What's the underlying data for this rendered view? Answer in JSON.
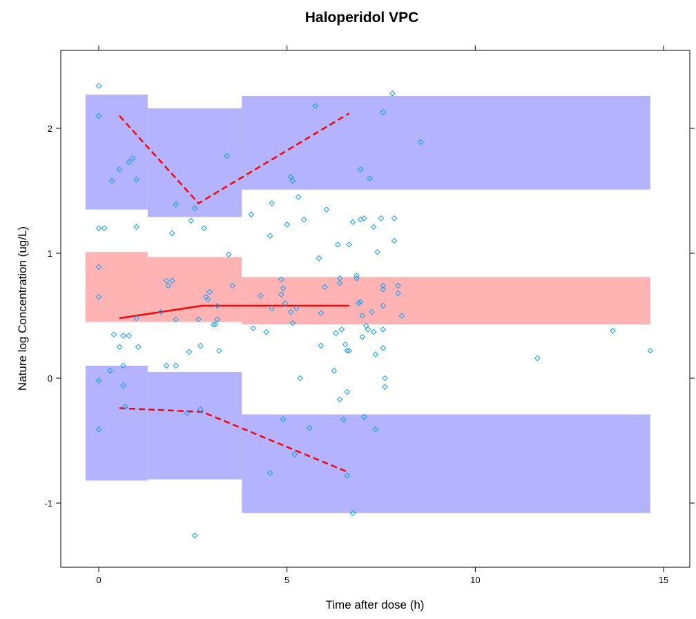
{
  "chart_data": {
    "type": "scatter",
    "title": "Haloperidol VPC",
    "xlabel": "Time after dose (h)",
    "ylabel": "Nature log Concentration (ug/L)",
    "xlim": [
      -1,
      15.2
    ],
    "ylim": [
      -1.5,
      2.6
    ],
    "xticks": [
      0,
      5,
      10,
      15
    ],
    "yticks": [
      -1,
      0,
      1,
      2
    ],
    "grid": false,
    "colors": {
      "outer_band": "#b3b3ff",
      "median_band": "#ffb3b3",
      "line": "#ff0000",
      "points": "#00a0ff"
    },
    "bands": [
      {
        "name": "upper",
        "color": "#b3b3ff",
        "segments": [
          {
            "x0": -0.35,
            "x1": 1.3,
            "y0": 1.35,
            "y1": 2.27
          },
          {
            "x0": 1.3,
            "x1": 3.8,
            "y0": 1.29,
            "y1": 2.16
          },
          {
            "x0": 3.8,
            "x1": 14.65,
            "y0": 1.51,
            "y1": 2.26
          }
        ]
      },
      {
        "name": "median",
        "color": "#ffb3b3",
        "segments": [
          {
            "x0": -0.35,
            "x1": 1.3,
            "y0": 0.45,
            "y1": 1.01
          },
          {
            "x0": 1.3,
            "x1": 3.8,
            "y0": 0.45,
            "y1": 0.97
          },
          {
            "x0": 3.8,
            "x1": 14.65,
            "y0": 0.43,
            "y1": 0.81
          }
        ]
      },
      {
        "name": "lower",
        "color": "#b3b3ff",
        "segments": [
          {
            "x0": -0.35,
            "x1": 1.3,
            "y0": -0.82,
            "y1": 0.1
          },
          {
            "x0": 1.3,
            "x1": 3.8,
            "y0": -0.81,
            "y1": 0.05
          },
          {
            "x0": 3.8,
            "x1": 14.65,
            "y0": -1.08,
            "y1": -0.29
          }
        ]
      }
    ],
    "lines": [
      {
        "style": "dashed",
        "x": [
          0.55,
          2.65,
          6.65
        ],
        "y": [
          2.1,
          1.4,
          2.12
        ]
      },
      {
        "style": "solid",
        "x": [
          0.55,
          2.75,
          6.65
        ],
        "y": [
          0.48,
          0.58,
          0.58
        ]
      },
      {
        "style": "dashed",
        "x": [
          0.55,
          2.75,
          6.6
        ],
        "y": [
          -0.24,
          -0.27,
          -0.75
        ]
      }
    ],
    "points": [
      [
        0,
        2.34
      ],
      [
        0,
        2.1
      ],
      [
        0,
        1.2
      ],
      [
        0.15,
        1.2
      ],
      [
        0,
        0.89
      ],
      [
        0,
        0.65
      ],
      [
        0,
        -0.02
      ],
      [
        0,
        -0.41
      ],
      [
        0.35,
        1.58
      ],
      [
        0.55,
        1.67
      ],
      [
        0.8,
        1.73
      ],
      [
        0.9,
        1.76
      ],
      [
        1,
        1.59
      ],
      [
        1,
        1.21
      ],
      [
        0.4,
        0.35
      ],
      [
        0.55,
        0.25
      ],
      [
        0.65,
        0.34
      ],
      [
        0.8,
        0.34
      ],
      [
        0.65,
        0.1
      ],
      [
        0.65,
        -0.06
      ],
      [
        0.7,
        -0.23
      ],
      [
        0.3,
        0.06
      ],
      [
        1.0,
        0.48
      ],
      [
        1.05,
        0.25
      ],
      [
        1.65,
        0.53
      ],
      [
        1.8,
        0.78
      ],
      [
        1.85,
        0.74
      ],
      [
        1.95,
        0.78
      ],
      [
        1.95,
        1.16
      ],
      [
        2.05,
        0.47
      ],
      [
        1.8,
        0.1
      ],
      [
        2.05,
        0.1
      ],
      [
        2.05,
        1.39
      ],
      [
        2.35,
        -0.28
      ],
      [
        2.4,
        0.21
      ],
      [
        2.55,
        1.36
      ],
      [
        2.65,
        0.47
      ],
      [
        2.7,
        0.26
      ],
      [
        2.7,
        -0.25
      ],
      [
        2.55,
        -1.26
      ],
      [
        2.45,
        1.26
      ],
      [
        2.8,
        1.2
      ],
      [
        2.85,
        0.65
      ],
      [
        2.9,
        0.63
      ],
      [
        2.95,
        0.69
      ],
      [
        3.05,
        0.43
      ],
      [
        3.1,
        0.43
      ],
      [
        3.15,
        0.47
      ],
      [
        3.2,
        0.22
      ],
      [
        3.15,
        0.58
      ],
      [
        3.4,
        1.78
      ],
      [
        3.45,
        0.99
      ],
      [
        3.55,
        0.74
      ],
      [
        4.05,
        1.31
      ],
      [
        4.1,
        0.4
      ],
      [
        4.3,
        0.66
      ],
      [
        4.45,
        0.37
      ],
      [
        4.55,
        1.14
      ],
      [
        4.6,
        1.4
      ],
      [
        4.6,
        0.56
      ],
      [
        4.55,
        -0.76
      ],
      [
        4.85,
        0.79
      ],
      [
        4.85,
        0.67
      ],
      [
        4.9,
        0.72
      ],
      [
        4.95,
        0.6
      ],
      [
        5,
        1.23
      ],
      [
        5.1,
        1.61
      ],
      [
        5.15,
        1.58
      ],
      [
        5.1,
        0.53
      ],
      [
        5.15,
        0.44
      ],
      [
        5.25,
        0.56
      ],
      [
        5.3,
        1.45
      ],
      [
        5.35,
        0
      ],
      [
        5.2,
        -0.61
      ],
      [
        4.9,
        -0.33
      ],
      [
        5.45,
        1.27
      ],
      [
        5.6,
        -0.4
      ],
      [
        5.75,
        2.18
      ],
      [
        5.85,
        0.96
      ],
      [
        5.9,
        0.52
      ],
      [
        5.9,
        0.26
      ],
      [
        6.05,
        1.35
      ],
      [
        6.0,
        0.73
      ],
      [
        6.25,
        0.06
      ],
      [
        6.3,
        0.36
      ],
      [
        6.35,
        1.07
      ],
      [
        6.4,
        0.8
      ],
      [
        6.4,
        0.76
      ],
      [
        6.45,
        0.39
      ],
      [
        6.4,
        -0.17
      ],
      [
        6.5,
        -0.33
      ],
      [
        6.55,
        0.27
      ],
      [
        6.6,
        0.22
      ],
      [
        6.65,
        0.22
      ],
      [
        6.65,
        1.07
      ],
      [
        6.6,
        -0.11
      ],
      [
        6.6,
        -0.78
      ],
      [
        6.75,
        1.25
      ],
      [
        6.75,
        -1.08
      ],
      [
        6.85,
        0.8
      ],
      [
        6.85,
        0.82
      ],
      [
        6.9,
        0.6
      ],
      [
        6.95,
        0.61
      ],
      [
        6.95,
        1.67
      ],
      [
        6.95,
        1.27
      ],
      [
        7.0,
        0.5
      ],
      [
        7.0,
        0.33
      ],
      [
        7.05,
        1.28
      ],
      [
        7.1,
        0.42
      ],
      [
        7.15,
        0.39
      ],
      [
        7.05,
        -0.31
      ],
      [
        7.2,
        1.6
      ],
      [
        7.25,
        0.53
      ],
      [
        7.3,
        0.37
      ],
      [
        7.3,
        1.21
      ],
      [
        7.35,
        0.19
      ],
      [
        7.35,
        -0.41
      ],
      [
        7.4,
        1.01
      ],
      [
        7.5,
        1.28
      ],
      [
        7.55,
        0.74
      ],
      [
        7.55,
        0.71
      ],
      [
        7.55,
        0.58
      ],
      [
        7.55,
        0.39
      ],
      [
        7.55,
        0.24
      ],
      [
        7.55,
        2.13
      ],
      [
        7.6,
        0
      ],
      [
        7.6,
        -0.07
      ],
      [
        7.8,
        2.28
      ],
      [
        7.85,
        1.28
      ],
      [
        7.85,
        1.1
      ],
      [
        7.95,
        0.74
      ],
      [
        7.95,
        0.68
      ],
      [
        8.05,
        0.5
      ],
      [
        8.55,
        1.89
      ],
      [
        11.65,
        0.16
      ],
      [
        13.65,
        0.38
      ],
      [
        14.65,
        0.22
      ]
    ]
  }
}
